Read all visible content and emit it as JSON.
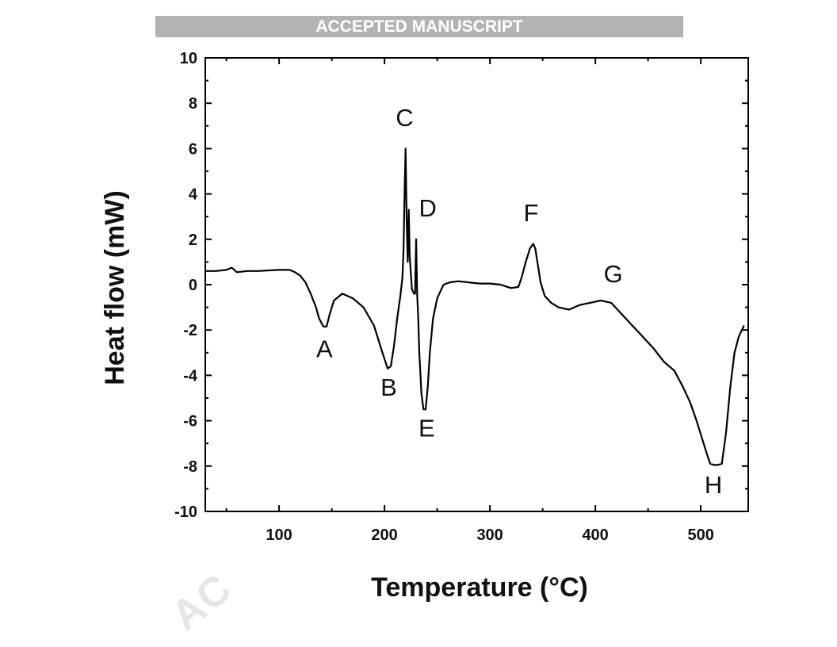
{
  "banner": {
    "text": "ACCEPTED MANUSCRIPT"
  },
  "watermark": {
    "text": "AC"
  },
  "chart_data": {
    "type": "line",
    "title": "",
    "xlabel": "Temperature (°C)",
    "ylabel": "Heat flow (mW)",
    "xlim": [
      30,
      545
    ],
    "ylim": [
      -10,
      10
    ],
    "xticks": [
      100,
      200,
      300,
      400,
      500
    ],
    "yticks": [
      -10,
      -8,
      -6,
      -4,
      -2,
      0,
      2,
      4,
      6,
      8,
      10
    ],
    "grid": false,
    "legend": "none",
    "line_color": "#000000",
    "series": [
      {
        "x": [
          30,
          40,
          50,
          55,
          60,
          70,
          80,
          100,
          110,
          115,
          120,
          125,
          130,
          135,
          138,
          142,
          145,
          148,
          152,
          160,
          170,
          180,
          190,
          198,
          203,
          206,
          209,
          212,
          215,
          217,
          218,
          219,
          220,
          221,
          222,
          223,
          224,
          226,
          228,
          229,
          230,
          231,
          232,
          233,
          235,
          237,
          239,
          241,
          243,
          246,
          250,
          256,
          262,
          270,
          280,
          290,
          300,
          310,
          320,
          327,
          330,
          334,
          338,
          341,
          343,
          345,
          348,
          352,
          358,
          365,
          375,
          385,
          395,
          405,
          415,
          425,
          435,
          445,
          455,
          465,
          475,
          483,
          490,
          496,
          502,
          506,
          509,
          512,
          516,
          520,
          524,
          528,
          532,
          536,
          541
        ],
        "y": [
          0.6,
          0.6,
          0.65,
          0.75,
          0.55,
          0.6,
          0.6,
          0.65,
          0.65,
          0.55,
          0.4,
          0.1,
          -0.4,
          -1.0,
          -1.5,
          -1.85,
          -1.85,
          -1.3,
          -0.7,
          -0.4,
          -0.6,
          -1.0,
          -1.8,
          -3.0,
          -3.7,
          -3.6,
          -2.7,
          -1.5,
          -0.5,
          0.3,
          1.5,
          4.0,
          6.0,
          3.0,
          1.0,
          3.3,
          1.2,
          -0.2,
          -0.4,
          -0.4,
          2.0,
          -0.4,
          -1.5,
          -3.0,
          -4.8,
          -5.5,
          -5.5,
          -4.5,
          -3.0,
          -1.5,
          -0.6,
          0.0,
          0.1,
          0.15,
          0.1,
          0.05,
          0.05,
          0.0,
          -0.15,
          -0.1,
          0.3,
          1.0,
          1.6,
          1.8,
          1.6,
          1.0,
          0.1,
          -0.5,
          -0.8,
          -1.0,
          -1.1,
          -0.9,
          -0.8,
          -0.7,
          -0.8,
          -1.3,
          -1.8,
          -2.3,
          -2.8,
          -3.4,
          -3.8,
          -4.5,
          -5.2,
          -6.0,
          -6.9,
          -7.5,
          -7.9,
          -7.95,
          -7.95,
          -7.9,
          -6.5,
          -4.5,
          -3.0,
          -2.3,
          -1.8
        ]
      }
    ],
    "annotations": [
      {
        "text": "A",
        "x": 143,
        "y": -3.2
      },
      {
        "text": "B",
        "x": 204,
        "y": -4.9
      },
      {
        "text": "C",
        "x": 219,
        "y": 7.0
      },
      {
        "text": "D",
        "x": 241,
        "y": 3.0
      },
      {
        "text": "E",
        "x": 240,
        "y": -6.7
      },
      {
        "text": "F",
        "x": 339,
        "y": 2.8
      },
      {
        "text": "G",
        "x": 417,
        "y": 0.1
      },
      {
        "text": "H",
        "x": 512,
        "y": -9.2
      }
    ]
  }
}
